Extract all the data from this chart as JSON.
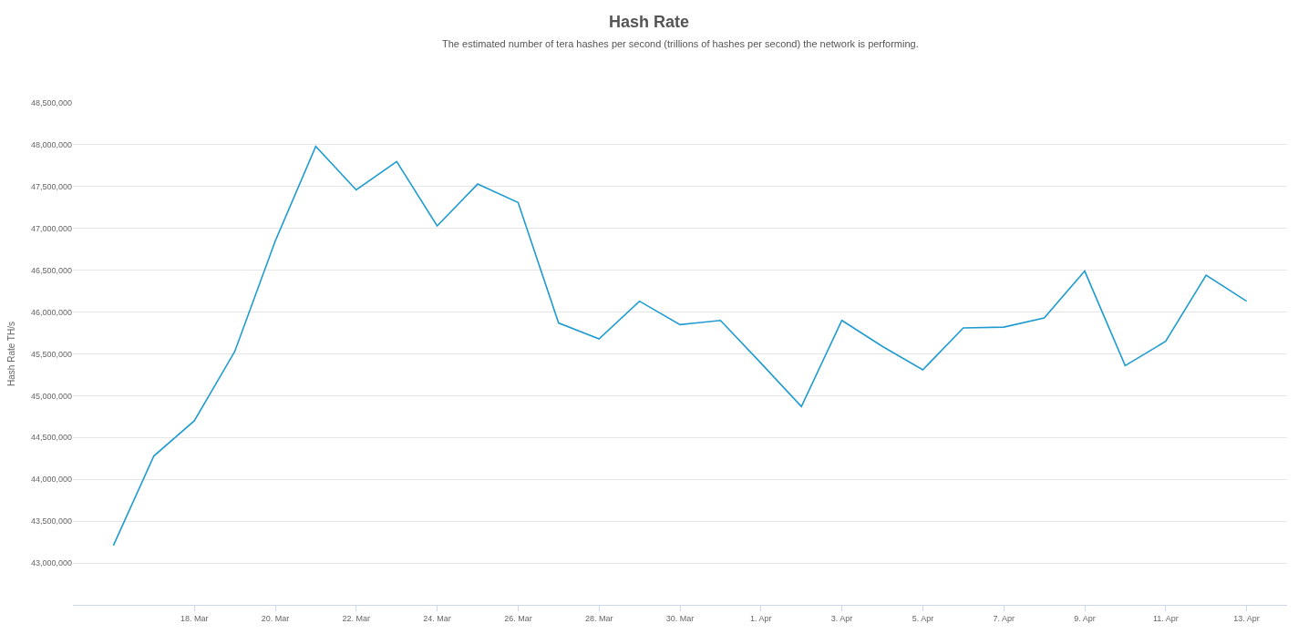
{
  "chart_data": {
    "type": "line",
    "title": "Hash Rate",
    "subtitle": "The estimated number of tera hashes per second (trillions of hashes per second) the network is performing.",
    "ylabel": "Hash Rate TH/s",
    "x": [
      "--03-16",
      "--03-17",
      "--03-18",
      "--03-19",
      "--03-20",
      "--03-21",
      "--03-22",
      "--03-23",
      "--03-24",
      "--03-25",
      "--03-26",
      "--03-27",
      "--03-28",
      "--03-29",
      "--03-30",
      "--03-31",
      "--04-01",
      "--04-02",
      "--04-03",
      "--04-04",
      "--04-05",
      "--04-06",
      "--04-07",
      "--04-08",
      "--04-09",
      "--04-10",
      "--04-11",
      "--04-12",
      "--04-13"
    ],
    "series": [
      {
        "color": "#1f9bd1",
        "values": [
          43210000,
          44280000,
          44700000,
          45530000,
          46850000,
          47980000,
          47460000,
          47800000,
          47030000,
          47530000,
          47310000,
          45870000,
          45680000,
          46130000,
          45850000,
          45900000,
          45390000,
          44870000,
          45900000,
          45590000,
          45310000,
          45810000,
          45820000,
          45930000,
          46490000,
          45360000,
          45650000,
          46440000,
          46130000
        ]
      }
    ],
    "xlim": [
      "--03-15",
      "--04-14"
    ],
    "xticks": [
      {
        "value": "--03-18",
        "label": "18. Mar"
      },
      {
        "value": "--03-20",
        "label": "20. Mar"
      },
      {
        "value": "--03-22",
        "label": "22. Mar"
      },
      {
        "value": "--03-24",
        "label": "24. Mar"
      },
      {
        "value": "--03-26",
        "label": "26. Mar"
      },
      {
        "value": "--03-28",
        "label": "28. Mar"
      },
      {
        "value": "--03-30",
        "label": "30. Mar"
      },
      {
        "value": "--04-01",
        "label": "1. Apr"
      },
      {
        "value": "--04-03",
        "label": "3. Apr"
      },
      {
        "value": "--04-05",
        "label": "5. Apr"
      },
      {
        "value": "--04-07",
        "label": "7. Apr"
      },
      {
        "value": "--04-09",
        "label": "9. Apr"
      },
      {
        "value": "--04-11",
        "label": "11. Apr"
      },
      {
        "value": "--04-13",
        "label": "13. Apr"
      }
    ],
    "ylim": [
      42500000,
      48500000
    ],
    "yticks": [
      {
        "value": 43000000,
        "label": "43,000,000"
      },
      {
        "value": 43500000,
        "label": "43,500,000"
      },
      {
        "value": 44000000,
        "label": "44,000,000"
      },
      {
        "value": 44500000,
        "label": "44,500,000"
      },
      {
        "value": 45000000,
        "label": "45,000,000"
      },
      {
        "value": 45500000,
        "label": "45,500,000"
      },
      {
        "value": 46000000,
        "label": "46,000,000"
      },
      {
        "value": 46500000,
        "label": "46,500,000"
      },
      {
        "value": 47000000,
        "label": "47,000,000"
      },
      {
        "value": 47500000,
        "label": "47,500,000"
      },
      {
        "value": 48000000,
        "label": "48,000,000"
      },
      {
        "value": 48500000,
        "label": "48,500,000"
      }
    ],
    "grid": "y",
    "marker": "none",
    "line_style": "solid"
  }
}
